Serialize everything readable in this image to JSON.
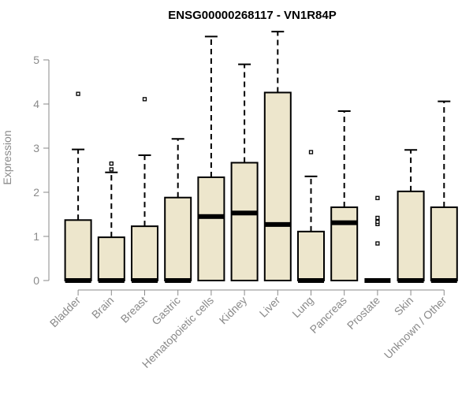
{
  "chart_data": {
    "type": "boxplot",
    "title": "ENSG00000268117 - VN1R84P",
    "xlabel": "",
    "ylabel": "Expression",
    "ylim": [
      0,
      5.6
    ],
    "yticks": [
      0,
      1,
      2,
      3,
      4,
      5
    ],
    "colors": {
      "box_fill": "#EDE6CC",
      "stroke": "#000000",
      "axis": "#8a8a8a"
    },
    "categories": [
      "Bladder",
      "Brain",
      "Breast",
      "Gastric",
      "Hematopoietic cells",
      "Kidney",
      "Liver",
      "Lung",
      "Pancreas",
      "Prostate",
      "Skin",
      "Unknown / Other"
    ],
    "boxes": [
      {
        "q1": 0,
        "median": 0,
        "q3": 1.37,
        "whisker_low": 0,
        "whisker_high": 2.97,
        "outliers": [
          4.23
        ]
      },
      {
        "q1": 0,
        "median": 0,
        "q3": 0.98,
        "whisker_low": 0,
        "whisker_high": 2.45,
        "outliers": [
          2.52,
          2.65
        ]
      },
      {
        "q1": 0,
        "median": 0,
        "q3": 1.23,
        "whisker_low": 0,
        "whisker_high": 2.84,
        "outliers": [
          4.11
        ]
      },
      {
        "q1": 0,
        "median": 0,
        "q3": 1.88,
        "whisker_low": 0,
        "whisker_high": 3.21,
        "outliers": []
      },
      {
        "q1": 0,
        "median": 1.45,
        "q3": 2.34,
        "whisker_low": 0,
        "whisker_high": 5.53,
        "outliers": []
      },
      {
        "q1": 0,
        "median": 1.53,
        "q3": 2.67,
        "whisker_low": 0,
        "whisker_high": 4.9,
        "outliers": []
      },
      {
        "q1": 0,
        "median": 1.27,
        "q3": 4.26,
        "whisker_low": 0,
        "whisker_high": 5.64,
        "outliers": []
      },
      {
        "q1": 0,
        "median": 0,
        "q3": 1.11,
        "whisker_low": 0,
        "whisker_high": 2.36,
        "outliers": [
          2.91
        ]
      },
      {
        "q1": 0,
        "median": 1.31,
        "q3": 1.66,
        "whisker_low": 0,
        "whisker_high": 3.84,
        "outliers": []
      },
      {
        "q1": 0,
        "median": 0,
        "q3": 0,
        "whisker_low": 0,
        "whisker_high": 0,
        "outliers": [
          0.84,
          1.28,
          1.33,
          1.42,
          1.87
        ]
      },
      {
        "q1": 0,
        "median": 0,
        "q3": 2.02,
        "whisker_low": 0,
        "whisker_high": 2.96,
        "outliers": []
      },
      {
        "q1": 0,
        "median": 0,
        "q3": 1.66,
        "whisker_low": 0,
        "whisker_high": 4.06,
        "outliers": []
      }
    ]
  }
}
